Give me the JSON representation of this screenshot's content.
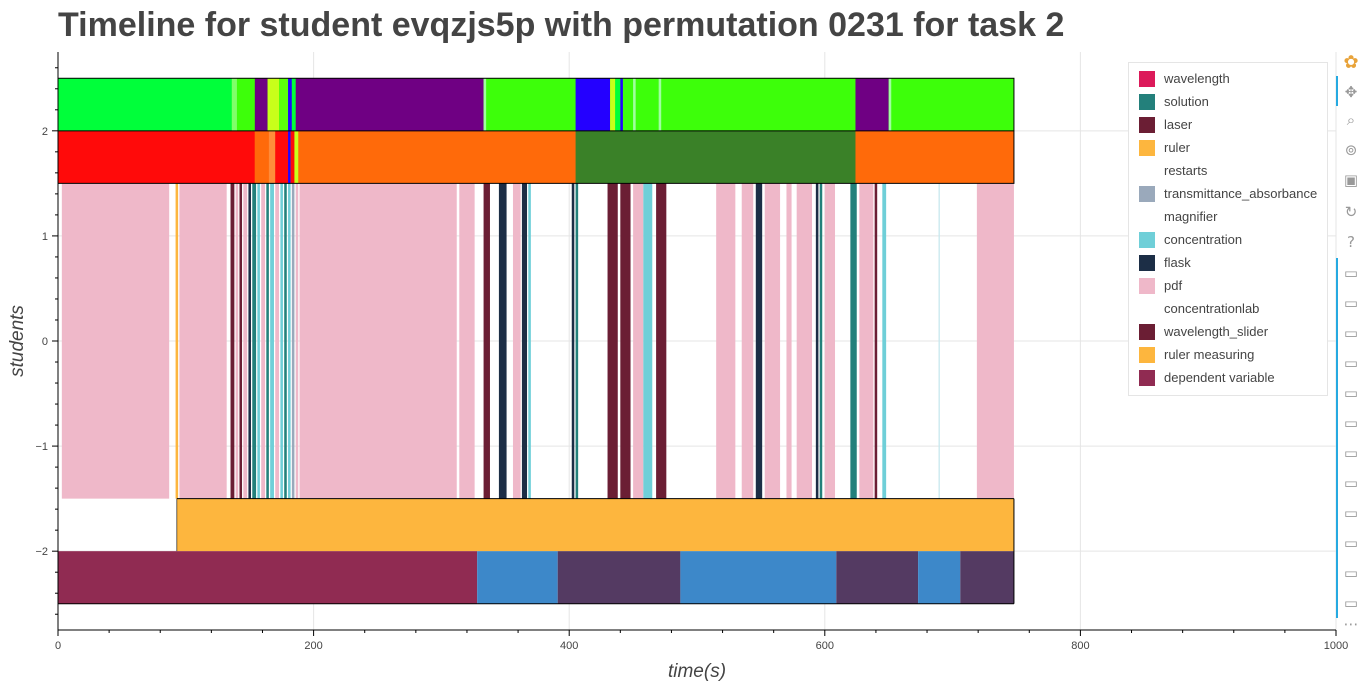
{
  "title": "Timeline for student evqzjs5p with permutation 0231 for task 2",
  "legend": [
    {
      "label": "wavelength",
      "color": "#dc1a5a"
    },
    {
      "label": "solution",
      "color": "#23807b"
    },
    {
      "label": "laser",
      "color": "#6b1e34"
    },
    {
      "label": "ruler",
      "color": "#fdb63e"
    },
    {
      "label": "restarts",
      "color": "#ffffff"
    },
    {
      "label": "transmittance_absorbance",
      "color": "#9aa9bb"
    },
    {
      "label": "magnifier",
      "color": "#ffffff"
    },
    {
      "label": "concentration",
      "color": "#6fcfd8"
    },
    {
      "label": "flask",
      "color": "#1c2e46"
    },
    {
      "label": "pdf",
      "color": "#efb8c9"
    },
    {
      "label": "concentrationlab",
      "color": "#ffffff"
    },
    {
      "label": "wavelength_slider",
      "color": "#6b1e34"
    },
    {
      "label": "ruler measuring",
      "color": "#fdb63e"
    },
    {
      "label": "dependent variable",
      "color": "#902b52"
    }
  ],
  "toolbar": [
    {
      "name": "bokeh-logo-icon",
      "glyph": "✿"
    },
    {
      "name": "pan-tool-icon",
      "glyph": "✥"
    },
    {
      "name": "box-zoom-tool-icon",
      "glyph": "⌕"
    },
    {
      "name": "wheel-zoom-tool-icon",
      "glyph": "⊚"
    },
    {
      "name": "save-tool-icon",
      "glyph": "▣"
    },
    {
      "name": "reset-tool-icon",
      "glyph": "↻"
    },
    {
      "name": "help-tool-icon",
      "glyph": "?"
    },
    {
      "name": "hover-tool-icon",
      "glyph": "▭"
    },
    {
      "name": "hover-tool-icon",
      "glyph": "▭"
    },
    {
      "name": "hover-tool-icon",
      "glyph": "▭"
    },
    {
      "name": "hover-tool-icon",
      "glyph": "▭"
    },
    {
      "name": "hover-tool-icon",
      "glyph": "▭"
    },
    {
      "name": "hover-tool-icon",
      "glyph": "▭"
    },
    {
      "name": "hover-tool-icon",
      "glyph": "▭"
    },
    {
      "name": "hover-tool-icon",
      "glyph": "▭"
    },
    {
      "name": "hover-tool-icon",
      "glyph": "▭"
    },
    {
      "name": "hover-tool-icon",
      "glyph": "▭"
    },
    {
      "name": "hover-tool-icon",
      "glyph": "▭"
    },
    {
      "name": "hover-tool-icon",
      "glyph": "▭"
    },
    {
      "name": "more-tools-icon",
      "glyph": "⋯"
    }
  ],
  "chart_data": {
    "type": "timeline",
    "title": "Timeline for student evqzjs5p with permutation 0231 for task 2",
    "xlabel": "time(s)",
    "ylabel": "students",
    "xlim": [
      0,
      1000
    ],
    "ylim": [
      -2.75,
      2.75
    ],
    "x_ticks": [
      0,
      200,
      400,
      600,
      800,
      1000
    ],
    "y_ticks": [
      -2,
      -1,
      0,
      1,
      2
    ],
    "y_tick_labels": [
      "−2",
      "−1",
      "0",
      "1",
      "2"
    ],
    "grid": true,
    "legend_position": "top-right",
    "tracks": [
      {
        "name": "top",
        "y0": 2.0,
        "y1": 2.5,
        "background": "#3dff0a",
        "segments": [
          {
            "start": 0,
            "end": 136,
            "color": "#00ff3a"
          },
          {
            "start": 136,
            "end": 140,
            "color": "#80ff6a"
          },
          {
            "start": 154,
            "end": 164,
            "color": "#6f0083"
          },
          {
            "start": 164,
            "end": 173,
            "color": "#c8ff1a"
          },
          {
            "start": 173,
            "end": 180,
            "color": "#5dff0a"
          },
          {
            "start": 180,
            "end": 183,
            "color": "#2400ff"
          },
          {
            "start": 183,
            "end": 186,
            "color": "#00ff3a"
          },
          {
            "start": 186,
            "end": 333,
            "color": "#6f0083"
          },
          {
            "start": 333,
            "end": 335,
            "color": "#a0ffa0"
          },
          {
            "start": 405,
            "end": 432,
            "color": "#2400ff"
          },
          {
            "start": 432,
            "end": 436,
            "color": "#c8ff1a"
          },
          {
            "start": 436,
            "end": 440,
            "color": "#00ff3a"
          },
          {
            "start": 440,
            "end": 442,
            "color": "#2400ff"
          },
          {
            "start": 450,
            "end": 452,
            "color": "#a0ffa0"
          },
          {
            "start": 470,
            "end": 472,
            "color": "#a0ffa0"
          },
          {
            "start": 624,
            "end": 650,
            "color": "#6f0083"
          },
          {
            "start": 650,
            "end": 652,
            "color": "#a0ffa0"
          }
        ]
      },
      {
        "name": "second",
        "y0": 1.5,
        "y1": 2.0,
        "background": "#ff6a0a",
        "segments": [
          {
            "start": 0,
            "end": 154,
            "color": "#ff0a0a"
          },
          {
            "start": 154,
            "end": 165,
            "color": "#ff6a0a"
          },
          {
            "start": 165,
            "end": 170,
            "color": "#ff8c3a"
          },
          {
            "start": 170,
            "end": 180,
            "color": "#ff0a0a"
          },
          {
            "start": 180,
            "end": 182,
            "color": "#2400ff"
          },
          {
            "start": 182,
            "end": 185,
            "color": "#ff0a0a"
          },
          {
            "start": 185,
            "end": 188,
            "color": "#c8ff1a"
          },
          {
            "start": 405,
            "end": 624,
            "color": "#3a8128"
          }
        ]
      },
      {
        "name": "activities",
        "y0": -1.5,
        "y1": 1.5,
        "background": "#ffffff",
        "segments": [
          {
            "start": 3,
            "end": 87,
            "color": "#efb8c9"
          },
          {
            "start": 92,
            "end": 94,
            "color": "#fdb63e"
          },
          {
            "start": 95,
            "end": 132,
            "color": "#efb8c9"
          },
          {
            "start": 135,
            "end": 138,
            "color": "#6b1e34"
          },
          {
            "start": 139,
            "end": 141,
            "color": "#efb8c9"
          },
          {
            "start": 142,
            "end": 144,
            "color": "#6b1e34"
          },
          {
            "start": 145,
            "end": 148,
            "color": "#efb8c9"
          },
          {
            "start": 149,
            "end": 151,
            "color": "#1c2e46"
          },
          {
            "start": 152,
            "end": 155,
            "color": "#23807b"
          },
          {
            "start": 156,
            "end": 158,
            "color": "#6fcfd8"
          },
          {
            "start": 159,
            "end": 162,
            "color": "#efb8c9"
          },
          {
            "start": 163,
            "end": 165,
            "color": "#23807b"
          },
          {
            "start": 166,
            "end": 169,
            "color": "#6fcfd8"
          },
          {
            "start": 170,
            "end": 173,
            "color": "#efb8c9"
          },
          {
            "start": 174,
            "end": 176,
            "color": "#6fcfd8"
          },
          {
            "start": 177,
            "end": 179,
            "color": "#23807b"
          },
          {
            "start": 180,
            "end": 182,
            "color": "#6fcfd8"
          },
          {
            "start": 183,
            "end": 185,
            "color": "#9aa9bb"
          },
          {
            "start": 186,
            "end": 188,
            "color": "#efb8c9"
          },
          {
            "start": 189,
            "end": 312,
            "color": "#efb8c9"
          },
          {
            "start": 314,
            "end": 326,
            "color": "#efb8c9"
          },
          {
            "start": 333,
            "end": 338,
            "color": "#6b1e34"
          },
          {
            "start": 345,
            "end": 351,
            "color": "#1c2e46"
          },
          {
            "start": 356,
            "end": 362,
            "color": "#efb8c9"
          },
          {
            "start": 363,
            "end": 367,
            "color": "#1c2e46"
          },
          {
            "start": 368,
            "end": 370,
            "color": "#6fcfd8"
          },
          {
            "start": 402,
            "end": 404,
            "color": "#1c2e46"
          },
          {
            "start": 405,
            "end": 407,
            "color": "#23807b"
          },
          {
            "start": 430,
            "end": 438,
            "color": "#6b1e34"
          },
          {
            "start": 440,
            "end": 448,
            "color": "#6b1e34"
          },
          {
            "start": 450,
            "end": 458,
            "color": "#efb8c9"
          },
          {
            "start": 458,
            "end": 465,
            "color": "#6fcfd8"
          },
          {
            "start": 468,
            "end": 476,
            "color": "#6b1e34"
          },
          {
            "start": 515,
            "end": 530,
            "color": "#efb8c9"
          },
          {
            "start": 535,
            "end": 544,
            "color": "#efb8c9"
          },
          {
            "start": 546,
            "end": 551,
            "color": "#1c2e46"
          },
          {
            "start": 553,
            "end": 565,
            "color": "#efb8c9"
          },
          {
            "start": 570,
            "end": 574,
            "color": "#efb8c9"
          },
          {
            "start": 578,
            "end": 590,
            "color": "#efb8c9"
          },
          {
            "start": 593,
            "end": 595,
            "color": "#1c2e46"
          },
          {
            "start": 596,
            "end": 598,
            "color": "#23807b"
          },
          {
            "start": 600,
            "end": 608,
            "color": "#efb8c9"
          },
          {
            "start": 620,
            "end": 625,
            "color": "#23807b"
          },
          {
            "start": 627,
            "end": 638,
            "color": "#efb8c9"
          },
          {
            "start": 639,
            "end": 641,
            "color": "#6b1e34"
          },
          {
            "start": 645,
            "end": 648,
            "color": "#6fcfd8"
          },
          {
            "start": 689,
            "end": 690,
            "color": "#c7e8ee"
          },
          {
            "start": 719,
            "end": 748,
            "color": "#efb8c9"
          }
        ]
      },
      {
        "name": "ruler measuring",
        "y0": -2.0,
        "y1": -1.5,
        "background": "#ffffff",
        "segments": [
          {
            "start": 93,
            "end": 748,
            "color": "#fdb63e"
          }
        ]
      },
      {
        "name": "dependent variable",
        "y0": -2.5,
        "y1": -2.0,
        "background": "#ffffff",
        "segments": [
          {
            "start": 0,
            "end": 328,
            "color": "#902b52"
          },
          {
            "start": 328,
            "end": 391,
            "color": "#3d88c9"
          },
          {
            "start": 391,
            "end": 487,
            "color": "#543a62"
          },
          {
            "start": 487,
            "end": 609,
            "color": "#3d88c9"
          },
          {
            "start": 609,
            "end": 673,
            "color": "#543a62"
          },
          {
            "start": 673,
            "end": 706,
            "color": "#3d88c9"
          },
          {
            "start": 706,
            "end": 748,
            "color": "#543a62"
          }
        ]
      }
    ],
    "outline_end": 748
  }
}
